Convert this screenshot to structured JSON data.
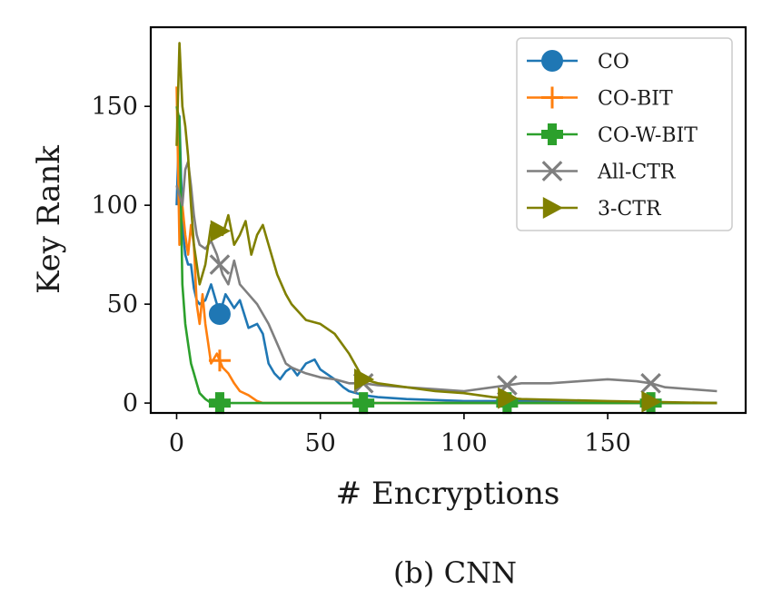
{
  "caption": "(b) CNN",
  "chart_data": {
    "type": "line",
    "xlabel": "# Encryptions",
    "ylabel": "Key Rank",
    "xlim": [
      -9,
      198
    ],
    "ylim": [
      -5,
      190
    ],
    "xticks": [
      0,
      50,
      100,
      150
    ],
    "yticks": [
      0,
      50,
      100,
      150
    ],
    "grid": false,
    "legend": "top-right",
    "series": [
      {
        "name": "CO",
        "color": "#1f77b4",
        "marker": "circle",
        "x": [
          0,
          1,
          2,
          3,
          4,
          5,
          6,
          7,
          8,
          10,
          12,
          14,
          15,
          17,
          20,
          22,
          25,
          28,
          30,
          32,
          34,
          36,
          38,
          40,
          42,
          45,
          48,
          50,
          52,
          55,
          58,
          60,
          65,
          70,
          80,
          100,
          120,
          150,
          188
        ],
        "y": [
          100,
          145,
          90,
          75,
          70,
          70,
          58,
          52,
          50,
          52,
          60,
          50,
          45,
          55,
          48,
          52,
          38,
          40,
          35,
          20,
          15,
          12,
          16,
          18,
          14,
          20,
          22,
          17,
          15,
          12,
          8,
          6,
          4,
          3,
          2,
          1,
          1,
          0,
          0
        ],
        "markers_x": [
          15
        ]
      },
      {
        "name": "CO-BIT",
        "color": "#ff7f0e",
        "marker": "plus",
        "x": [
          0,
          1,
          2,
          3,
          4,
          5,
          6,
          7,
          8,
          9,
          10,
          11,
          12,
          14,
          16,
          18,
          20,
          22,
          25,
          28,
          30,
          35,
          50,
          100,
          188
        ],
        "y": [
          160,
          80,
          100,
          85,
          75,
          90,
          80,
          50,
          40,
          55,
          40,
          30,
          20,
          25,
          18,
          15,
          10,
          6,
          4,
          1,
          0,
          0,
          0,
          0,
          0
        ],
        "markers_x": [
          15
        ]
      },
      {
        "name": "CO-W-BIT",
        "color": "#2ca02c",
        "marker": "plus-filled",
        "x": [
          0,
          1,
          2,
          3,
          4,
          5,
          6,
          7,
          8,
          10,
          12,
          15,
          20,
          50,
          100,
          188
        ],
        "y": [
          150,
          143,
          60,
          40,
          30,
          20,
          15,
          10,
          5,
          2,
          0,
          0,
          0,
          0,
          0,
          0
        ],
        "markers_x": [
          15,
          65,
          115,
          165
        ]
      },
      {
        "name": "All-CTR",
        "color": "#7f7f7f",
        "marker": "x",
        "x": [
          0,
          2,
          3,
          4,
          5,
          6,
          7,
          8,
          10,
          12,
          14,
          16,
          18,
          20,
          22,
          25,
          28,
          30,
          32,
          35,
          38,
          40,
          45,
          50,
          55,
          60,
          65,
          70,
          80,
          90,
          100,
          110,
          120,
          130,
          140,
          150,
          160,
          165,
          170,
          188
        ],
        "y": [
          110,
          100,
          118,
          122,
          110,
          95,
          85,
          80,
          78,
          82,
          75,
          65,
          60,
          72,
          60,
          55,
          50,
          45,
          40,
          30,
          20,
          18,
          15,
          13,
          12,
          10,
          10,
          9,
          8,
          7,
          6,
          8,
          10,
          10,
          11,
          12,
          11,
          10,
          8,
          6
        ],
        "markers_x": [
          15,
          65,
          115,
          165
        ]
      },
      {
        "name": "3-CTR",
        "color": "#808000",
        "marker": "triangle-right",
        "x": [
          0,
          1,
          2,
          3,
          4,
          5,
          6,
          8,
          10,
          12,
          14,
          15,
          16,
          18,
          20,
          22,
          24,
          26,
          28,
          30,
          32,
          35,
          38,
          40,
          45,
          50,
          55,
          60,
          65,
          70,
          80,
          90,
          100,
          110,
          120,
          150,
          188
        ],
        "y": [
          130,
          182,
          150,
          140,
          125,
          100,
          80,
          60,
          70,
          90,
          85,
          87,
          85,
          95,
          80,
          85,
          92,
          75,
          85,
          90,
          80,
          65,
          55,
          50,
          42,
          40,
          35,
          25,
          12,
          10,
          8,
          6,
          5,
          3,
          2,
          1,
          0
        ],
        "markers_x": [
          15,
          65,
          115,
          165
        ]
      }
    ]
  }
}
